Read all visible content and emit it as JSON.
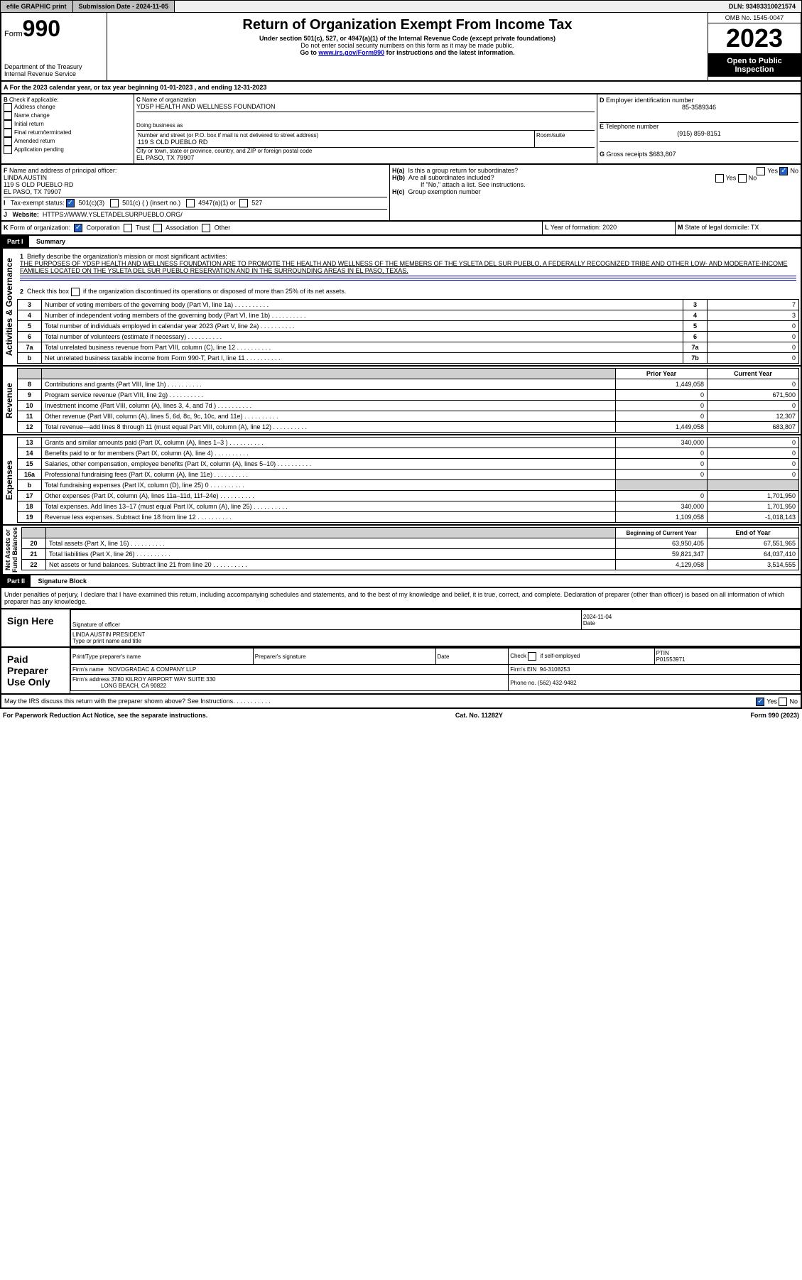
{
  "topbar": {
    "efile": "efile GRAPHIC print",
    "sub_label": "Submission Date - 2024-11-05",
    "dln": "DLN: 93493310021574"
  },
  "header": {
    "form_prefix": "Form",
    "form_num": "990",
    "dept": "Department of the Treasury",
    "irs": "Internal Revenue Service",
    "title": "Return of Organization Exempt From Income Tax",
    "sub1": "Under section 501(c), 527, or 4947(a)(1) of the Internal Revenue Code (except private foundations)",
    "sub2": "Do not enter social security numbers on this form as it may be made public.",
    "sub3_pre": "Go to ",
    "sub3_link": "www.irs.gov/Form990",
    "sub3_post": " for instructions and the latest information.",
    "omb": "OMB No. 1545-0047",
    "year": "2023",
    "open": "Open to Public Inspection"
  },
  "A": {
    "taxyear": "For the 2023 calendar year, or tax year beginning 01-01-2023   , and ending 12-31-2023"
  },
  "B": {
    "label": "Check if applicable:",
    "opts": [
      "Address change",
      "Name change",
      "Initial return",
      "Final return/terminated",
      "Amended return",
      "Application pending"
    ]
  },
  "C": {
    "name_lbl": "Name of organization",
    "name": "YDSP HEALTH AND WELLNESS FOUNDATION",
    "dba_lbl": "Doing business as",
    "dba": "",
    "addr_lbl": "Number and street (or P.O. box if mail is not delivered to street address)",
    "room_lbl": "Room/suite",
    "addr": "119 S OLD PUEBLO RD",
    "city_lbl": "City or town, state or province, country, and ZIP or foreign postal code",
    "city": "EL PASO, TX  79907"
  },
  "D": {
    "lbl": "Employer identification number",
    "val": "85-3589346"
  },
  "E": {
    "lbl": "Telephone number",
    "val": "(915) 859-8151"
  },
  "G": {
    "lbl": "Gross receipts $",
    "val": "683,807"
  },
  "F": {
    "lbl": "Name and address of principal officer:",
    "name": "LINDA AUSTIN",
    "addr1": "119 S OLD PUEBLO RD",
    "addr2": "EL PASO, TX  79907"
  },
  "H": {
    "a_lbl": "Is this a group return for subordinates?",
    "a_yes": "Yes",
    "a_no": "No",
    "b_lbl": "Are all subordinates included?",
    "b_yes": "Yes",
    "b_no": "No",
    "b_note": "If \"No,\" attach a list. See instructions.",
    "c_lbl": "Group exemption number"
  },
  "I": {
    "lbl": "Tax-exempt status:",
    "opt1": "501(c)(3)",
    "opt2": "501(c) (  ) (insert no.)",
    "opt3": "4947(a)(1) or",
    "opt4": "527"
  },
  "J": {
    "lbl": "Website:",
    "val": "HTTPS://WWW.YSLETADELSURPUEBLO.ORG/"
  },
  "K": {
    "lbl": "Form of organization:",
    "opts": [
      "Corporation",
      "Trust",
      "Association",
      "Other"
    ]
  },
  "L": {
    "lbl": "Year of formation:",
    "val": "2020"
  },
  "M": {
    "lbl": "State of legal domicile:",
    "val": "TX"
  },
  "part1": {
    "hdr": "Part I",
    "title": "Summary"
  },
  "summary": {
    "q1": "Briefly describe the organization's mission or most significant activities:",
    "mission": "THE PURPOSES OF YDSP HEALTH AND WELLNESS FOUNDATION ARE TO PROMOTE THE HEALTH AND WELLNESS OF THE MEMBERS OF THE YSLETA DEL SUR PUEBLO, A FEDERALLY RECOGNIZED TRIBE AND OTHER LOW- AND MODERATE-INCOME FAMILIES LOCATED ON THE YSLETA DEL SUR PUEBLO RESERVATION AND IN THE SURROUNDING AREAS IN EL PASO, TEXAS.",
    "q2": "Check this box      if the organization discontinued its operations or disposed of more than 25% of its net assets.",
    "governance": [
      {
        "n": "3",
        "t": "Number of voting members of the governing body (Part VI, line 1a)",
        "b": "3",
        "v": "7"
      },
      {
        "n": "4",
        "t": "Number of independent voting members of the governing body (Part VI, line 1b)",
        "b": "4",
        "v": "3"
      },
      {
        "n": "5",
        "t": "Total number of individuals employed in calendar year 2023 (Part V, line 2a)",
        "b": "5",
        "v": "0"
      },
      {
        "n": "6",
        "t": "Total number of volunteers (estimate if necessary)",
        "b": "6",
        "v": "0"
      },
      {
        "n": "7a",
        "t": "Total unrelated business revenue from Part VIII, column (C), line 12",
        "b": "7a",
        "v": "0"
      },
      {
        "n": "b",
        "t": "Net unrelated business taxable income from Form 990-T, Part I, line 11",
        "b": "7b",
        "v": "0"
      }
    ],
    "col_prior": "Prior Year",
    "col_current": "Current Year",
    "revenue": [
      {
        "n": "8",
        "t": "Contributions and grants (Part VIII, line 1h)",
        "p": "1,449,058",
        "c": "0"
      },
      {
        "n": "9",
        "t": "Program service revenue (Part VIII, line 2g)",
        "p": "0",
        "c": "671,500"
      },
      {
        "n": "10",
        "t": "Investment income (Part VIII, column (A), lines 3, 4, and 7d )",
        "p": "0",
        "c": "0"
      },
      {
        "n": "11",
        "t": "Other revenue (Part VIII, column (A), lines 5, 6d, 8c, 9c, 10c, and 11e)",
        "p": "0",
        "c": "12,307"
      },
      {
        "n": "12",
        "t": "Total revenue—add lines 8 through 11 (must equal Part VIII, column (A), line 12)",
        "p": "1,449,058",
        "c": "683,807"
      }
    ],
    "expenses": [
      {
        "n": "13",
        "t": "Grants and similar amounts paid (Part IX, column (A), lines 1–3 )",
        "p": "340,000",
        "c": "0"
      },
      {
        "n": "14",
        "t": "Benefits paid to or for members (Part IX, column (A), line 4)",
        "p": "0",
        "c": "0"
      },
      {
        "n": "15",
        "t": "Salaries, other compensation, employee benefits (Part IX, column (A), lines 5–10)",
        "p": "0",
        "c": "0"
      },
      {
        "n": "16a",
        "t": "Professional fundraising fees (Part IX, column (A), line 11e)",
        "p": "0",
        "c": "0"
      },
      {
        "n": "b",
        "t": "Total fundraising expenses (Part IX, column (D), line 25) 0",
        "p": "",
        "c": "",
        "shade": true
      },
      {
        "n": "17",
        "t": "Other expenses (Part IX, column (A), lines 11a–11d, 11f–24e)",
        "p": "0",
        "c": "1,701,950"
      },
      {
        "n": "18",
        "t": "Total expenses. Add lines 13–17 (must equal Part IX, column (A), line 25)",
        "p": "340,000",
        "c": "1,701,950"
      },
      {
        "n": "19",
        "t": "Revenue less expenses. Subtract line 18 from line 12",
        "p": "1,109,058",
        "c": "-1,018,143"
      }
    ],
    "col_begin": "Beginning of Current Year",
    "col_end": "End of Year",
    "netassets": [
      {
        "n": "20",
        "t": "Total assets (Part X, line 16)",
        "p": "63,950,405",
        "c": "67,551,965"
      },
      {
        "n": "21",
        "t": "Total liabilities (Part X, line 26)",
        "p": "59,821,347",
        "c": "64,037,410"
      },
      {
        "n": "22",
        "t": "Net assets or fund balances. Subtract line 21 from line 20",
        "p": "4,129,058",
        "c": "3,514,555"
      }
    ]
  },
  "part2": {
    "hdr": "Part II",
    "title": "Signature Block"
  },
  "sig": {
    "perjury": "Under penalties of perjury, I declare that I have examined this return, including accompanying schedules and statements, and to the best of my knowledge and belief, it is true, correct, and complete. Declaration of preparer (other than officer) is based on all information of which preparer has any knowledge.",
    "sign_here": "Sign Here",
    "sig_officer": "Signature of officer",
    "sig_date": "2024-11-04",
    "date_lbl": "Date",
    "officer": "LINDA AUSTIN PRESIDENT",
    "type_name": "Type or print name and title",
    "paid": "Paid Preparer Use Only",
    "prep_name_lbl": "Print/Type preparer's name",
    "prep_sig_lbl": "Preparer's signature",
    "prep_date_lbl": "Date",
    "check_self": "Check      if self-employed",
    "ptin_lbl": "PTIN",
    "ptin": "P01553971",
    "firm_name_lbl": "Firm's name",
    "firm_name": "NOVOGRADAC & COMPANY LLP",
    "firm_ein_lbl": "Firm's EIN",
    "firm_ein": "94-3108253",
    "firm_addr_lbl": "Firm's address",
    "firm_addr": "3780 KILROY AIRPORT WAY SUITE 330",
    "firm_city": "LONG BEACH, CA  90822",
    "phone_lbl": "Phone no.",
    "phone": "(562) 432-9482",
    "discuss": "May the IRS discuss this return with the preparer shown above? See Instructions.",
    "d_yes": "Yes",
    "d_no": "No"
  },
  "footer": {
    "l": "For Paperwork Reduction Act Notice, see the separate instructions.",
    "c": "Cat. No. 11282Y",
    "r": "Form 990 (2023)"
  }
}
